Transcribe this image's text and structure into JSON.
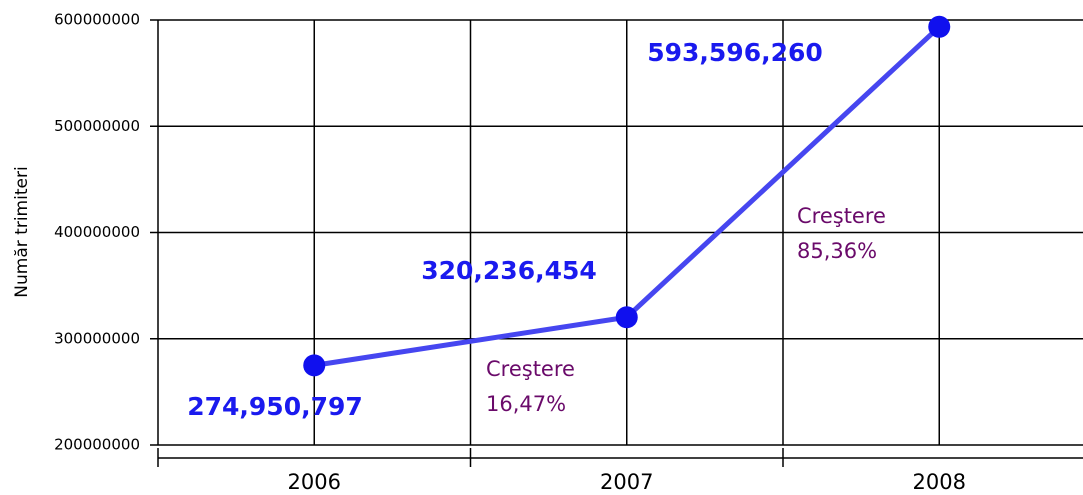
{
  "chart_data": {
    "type": "line",
    "y_label": "Număr trimiteri",
    "categories": [
      "2006",
      "2007",
      "2008"
    ],
    "series": [
      {
        "name": null,
        "color": "#4646f0",
        "marker_color": "#1010ee",
        "values": [
          274950797,
          320236454,
          593596260
        ],
        "value_labels": [
          "274,950,797",
          "320,236,454",
          "593,596,260"
        ]
      }
    ],
    "ylim": [
      200000000,
      600000000
    ],
    "yticks": [
      200000000,
      300000000,
      400000000,
      500000000,
      600000000
    ],
    "grid": true,
    "annotations": [
      {
        "lines": [
          "Creştere",
          "16,47%"
        ]
      },
      {
        "lines": [
          "Creştere",
          "85,36%"
        ]
      }
    ]
  }
}
